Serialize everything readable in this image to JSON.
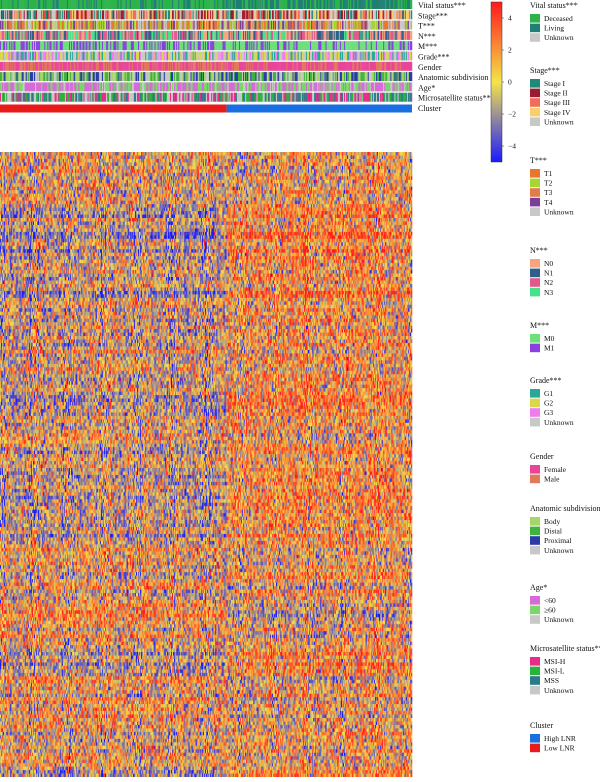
{
  "chart_data": {
    "type": "heatmap",
    "title": "",
    "n_samples": 400,
    "n_genes": 180,
    "expression_matrix": "random z-scores per cell (dense clustered expression heatmap, not individually readable)",
    "colorbar": {
      "ticks": [
        4,
        2,
        0,
        -2,
        -4
      ],
      "range": [
        -5,
        5
      ],
      "colors": [
        "#1a1aff",
        "#f5e44a",
        "#ff1a1a"
      ]
    },
    "annotation_tracks": [
      {
        "label": "Vital status***"
      },
      {
        "label": "Stage***"
      },
      {
        "label": "T***"
      },
      {
        "label": "N***"
      },
      {
        "label": "M***"
      },
      {
        "label": "Grade***"
      },
      {
        "label": "Gender"
      },
      {
        "label": "Anatomic subdivision"
      },
      {
        "label": "Age*"
      },
      {
        "label": "Microsatellite status**"
      },
      {
        "label": "Cluster"
      }
    ],
    "cluster_split_fraction": 0.55,
    "legends": [
      {
        "title": "Vital status***",
        "items": [
          {
            "label": "Deceased",
            "color": "#2db34a"
          },
          {
            "label": "Living",
            "color": "#1f7f74"
          },
          {
            "label": "Unknown",
            "color": "#c8c8c8"
          }
        ]
      },
      {
        "title": "Stage***",
        "items": [
          {
            "label": "Stage I",
            "color": "#1f8a7a"
          },
          {
            "label": "Stage II",
            "color": "#9b1b30"
          },
          {
            "label": "Stage III",
            "color": "#f26b5b"
          },
          {
            "label": "Stage IV",
            "color": "#f7cf6b"
          },
          {
            "label": "Unknown",
            "color": "#c8c8c8"
          }
        ]
      },
      {
        "title": "T***",
        "items": [
          {
            "label": "T1",
            "color": "#e8762b"
          },
          {
            "label": "T2",
            "color": "#a6d62f"
          },
          {
            "label": "T3",
            "color": "#e27c4a"
          },
          {
            "label": "T4",
            "color": "#7a3f9a"
          },
          {
            "label": "Unknown",
            "color": "#c8c8c8"
          }
        ]
      },
      {
        "title": "N***",
        "items": [
          {
            "label": "N0",
            "color": "#f6a57e"
          },
          {
            "label": "N1",
            "color": "#2e5f8a"
          },
          {
            "label": "N2",
            "color": "#e05a8c"
          },
          {
            "label": "N3",
            "color": "#49e08a"
          }
        ]
      },
      {
        "title": "M***",
        "items": [
          {
            "label": "M0",
            "color": "#6ee07a"
          },
          {
            "label": "M1",
            "color": "#8a3fe0"
          }
        ]
      },
      {
        "title": "Grade***",
        "items": [
          {
            "label": "G1",
            "color": "#2aa79a"
          },
          {
            "label": "G2",
            "color": "#d8d84a"
          },
          {
            "label": "G3",
            "color": "#f07cf0"
          },
          {
            "label": "Unknown",
            "color": "#c8c8c8"
          }
        ]
      },
      {
        "title": "Gender",
        "items": [
          {
            "label": "Female",
            "color": "#e8449a"
          },
          {
            "label": "Male",
            "color": "#e07a5a"
          }
        ]
      },
      {
        "title": "Anatomic subdivision",
        "items": [
          {
            "label": "Body",
            "color": "#a6d66a"
          },
          {
            "label": "Distal",
            "color": "#3fb33f"
          },
          {
            "label": "Proximal",
            "color": "#2a3aa8"
          },
          {
            "label": "Unknown",
            "color": "#c8c8c8"
          }
        ]
      },
      {
        "title": "Age*",
        "items": [
          {
            "label": "<60",
            "color": "#d66ad6"
          },
          {
            "label": "≥60",
            "color": "#7ad66a"
          },
          {
            "label": "Unknown",
            "color": "#c8c8c8"
          }
        ]
      },
      {
        "title": "Microsatellite status**",
        "items": [
          {
            "label": "MSI-H",
            "color": "#e82a8a"
          },
          {
            "label": "MSI-L",
            "color": "#2ab33a"
          },
          {
            "label": "MSS",
            "color": "#2a7a8a"
          },
          {
            "label": "Unknown",
            "color": "#c8c8c8"
          }
        ]
      },
      {
        "title": "Cluster",
        "items": [
          {
            "label": "High LNR",
            "color": "#1a6fe0"
          },
          {
            "label": "Low LNR",
            "color": "#e81a1a"
          }
        ]
      }
    ]
  }
}
